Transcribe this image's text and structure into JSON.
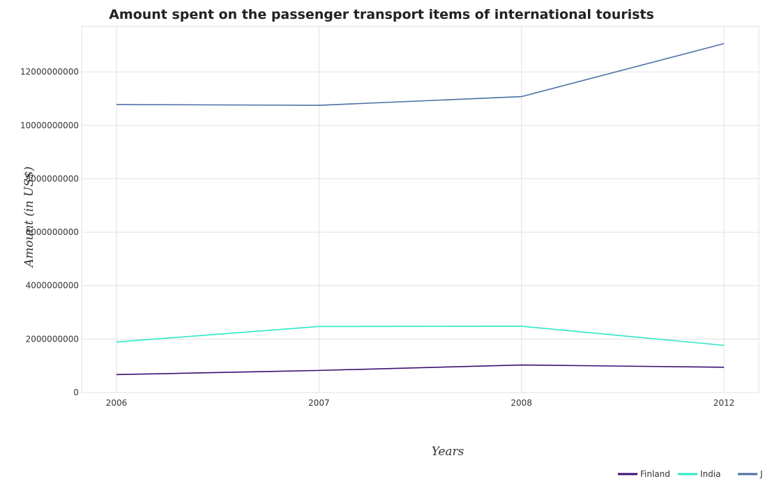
{
  "chart_data": {
    "type": "line",
    "title": "Amount spent on the passenger transport items of international tourists",
    "xlabel": "Years",
    "ylabel": "Amount (in US$)",
    "categories": [
      "2006",
      "2007",
      "2008",
      "2012"
    ],
    "ylim": [
      0,
      13700000000
    ],
    "yticks": [
      0,
      2000000000,
      4000000000,
      6000000000,
      8000000000,
      10000000000,
      12000000000
    ],
    "ytick_labels": [
      "0",
      "2000000000",
      "4000000000",
      "6000000000",
      "8000000000",
      "10000000000",
      "12000000000"
    ],
    "grid": true,
    "legend_position": "bottom-right",
    "series": [
      {
        "name": "Finland",
        "color": "#3b0f70",
        "values": [
          670000000,
          825000000,
          1030000000,
          945000000
        ]
      },
      {
        "name": "India",
        "color": "#2ee8c8",
        "values": [
          1890000000,
          2470000000,
          2480000000,
          1765000000
        ]
      },
      {
        "name": "Japan",
        "color": "#4a6fa5",
        "values": [
          10780000000,
          10750000000,
          11075000000,
          13060000000
        ]
      }
    ]
  }
}
